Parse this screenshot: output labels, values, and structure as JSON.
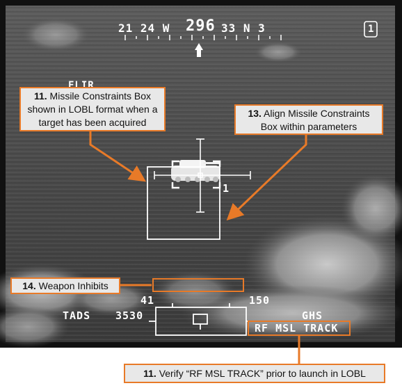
{
  "hud": {
    "heading_left": "21  24  W",
    "heading_value": "296",
    "heading_right": "33  N  3",
    "mode_number": "1",
    "flir_label": "FLIR",
    "missile_count": "1",
    "upper_left_value": "41",
    "upper_right_value": "150",
    "sight_label": "TADS",
    "range_value": "3530",
    "acq_label": "GHS",
    "msl_track": "RF MSL TRACK"
  },
  "callouts": {
    "c1_num": "11.",
    "c1_text": "Missile Constraints Box shown in LOBL format when a target has been acquired",
    "c2_num": "13.",
    "c2_text": "Align Missile Constraints Box within parameters",
    "c3_num": "14.",
    "c3_text": "Weapon Inhibits",
    "c4_num": "11.",
    "c4_text": "Verify “RF MSL TRACK” prior to launch in LOBL"
  },
  "colors": {
    "accent": "#e87a28",
    "frame": "#111111",
    "hud_symbology": "#ffffff",
    "callout_fill": "#e8e8e8"
  }
}
